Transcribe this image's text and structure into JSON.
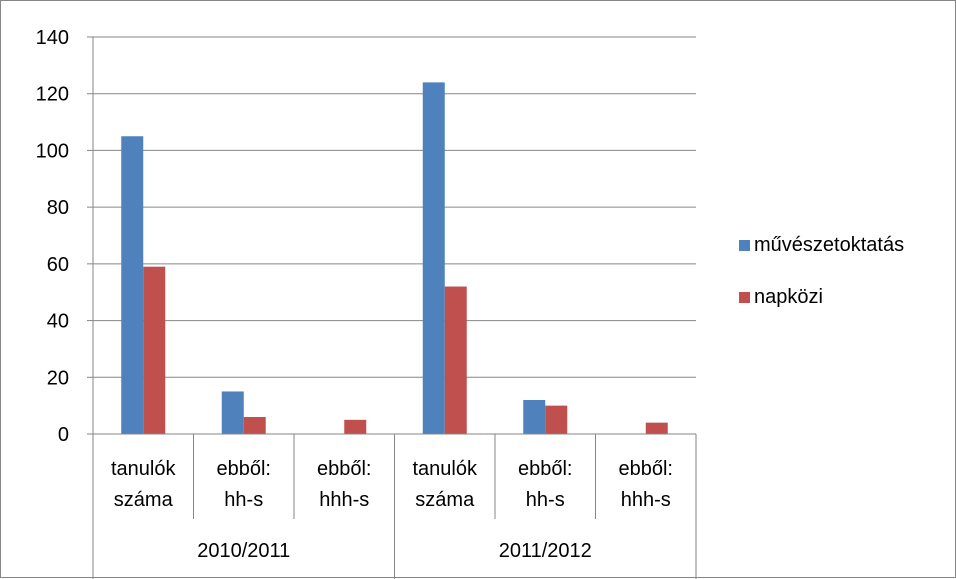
{
  "chart_data": {
    "type": "bar",
    "title": "",
    "xlabel": "",
    "ylabel": "",
    "ylim": [
      0,
      140
    ],
    "y_ticks": [
      0,
      20,
      40,
      60,
      80,
      100,
      120,
      140
    ],
    "grid": true,
    "legend_position": "right",
    "groups": [
      {
        "label": "2010/2011",
        "categories": [
          [
            "tanulók",
            "száma"
          ],
          [
            "ebből:",
            "hh-s"
          ],
          [
            "ebből:",
            "hhh-s"
          ]
        ]
      },
      {
        "label": "2011/2012",
        "categories": [
          [
            "tanulók",
            "száma"
          ],
          [
            "ebből:",
            "hh-s"
          ],
          [
            "ebből:",
            "hhh-s"
          ]
        ]
      }
    ],
    "series": [
      {
        "name": "művészetoktatás",
        "color": "#4F81BD",
        "values": [
          105,
          15,
          0,
          124,
          12,
          0
        ]
      },
      {
        "name": "napközi",
        "color": "#C0504D",
        "values": [
          59,
          6,
          5,
          52,
          10,
          4
        ]
      }
    ]
  }
}
